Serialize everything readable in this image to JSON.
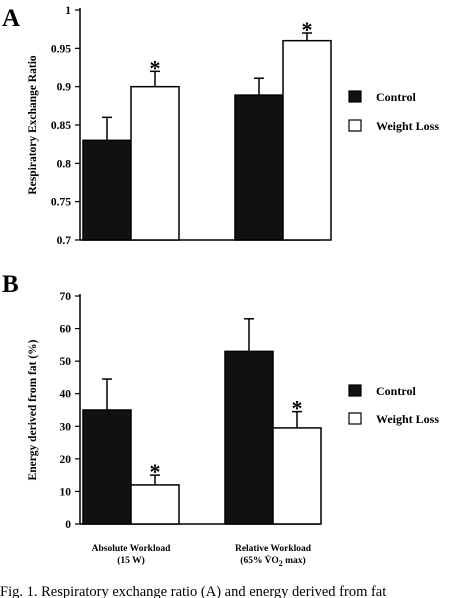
{
  "chart_data": [
    {
      "type": "bar",
      "panel": "A",
      "ylabel": "Respiratory Exchange Ratio",
      "ylim": [
        0.7,
        1.0
      ],
      "yticks": [
        "0.7",
        "0.75",
        "0.8",
        "0.85",
        "0.9",
        "0.95",
        "1"
      ],
      "categories": [
        "Absolute Workload",
        "Relative Workload"
      ],
      "series": [
        {
          "name": "Control",
          "color": "#111111",
          "values": [
            0.83,
            0.889
          ],
          "errors": [
            0.03,
            0.022
          ]
        },
        {
          "name": "Weight Loss",
          "color": "#ffffff",
          "values": [
            0.9,
            0.96
          ],
          "errors": [
            0.02,
            0.01
          ]
        }
      ],
      "annotations": [
        "*",
        "*"
      ],
      "legend_position": "right"
    },
    {
      "type": "bar",
      "panel": "B",
      "ylabel": "Energy derived from fat (%)",
      "ylim": [
        0,
        70
      ],
      "yticks": [
        "0",
        "10",
        "20",
        "30",
        "40",
        "50",
        "60",
        "70"
      ],
      "categories": [
        "Absolute Workload",
        "Relative Workload"
      ],
      "category_labels": [
        {
          "line1": "Absolute Workload",
          "line2": "(15 W)"
        },
        {
          "line1": "Relative Workload",
          "line2": "(65% V̇O",
          "sub": "2",
          "tail": " max)"
        }
      ],
      "series": [
        {
          "name": "Control",
          "color": "#111111",
          "values": [
            35,
            53
          ],
          "errors": [
            9.5,
            10
          ]
        },
        {
          "name": "Weight Loss",
          "color": "#ffffff",
          "values": [
            12,
            29.5
          ],
          "errors": [
            3,
            5
          ]
        }
      ],
      "annotations": [
        "*",
        "*"
      ],
      "legend_position": "right"
    }
  ],
  "caption": "Fig. 1. Respiratory exchange ratio (A) and energy derived from fat"
}
